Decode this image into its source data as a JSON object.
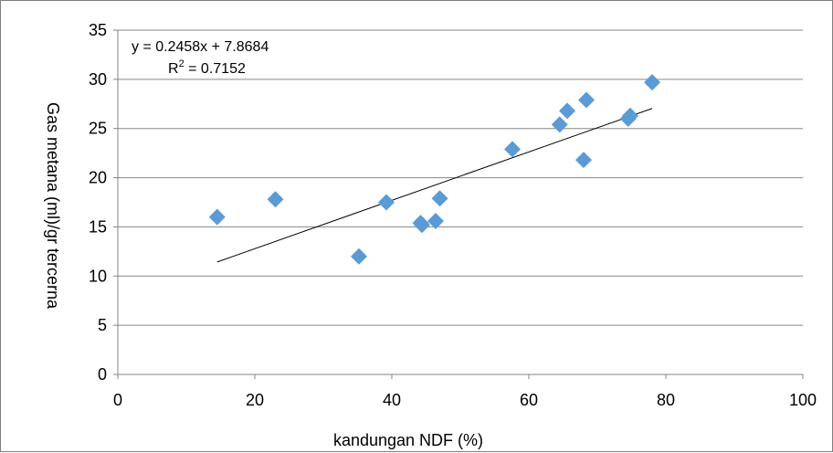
{
  "chart_data": {
    "type": "scatter",
    "xlabel": "kandungan NDF (%)",
    "ylabel": "Gas metana (ml)/gr tercerna",
    "xlim": [
      0,
      100
    ],
    "ylim": [
      0,
      35
    ],
    "x_ticks": [
      0,
      20,
      40,
      60,
      80,
      100
    ],
    "y_ticks": [
      0,
      5,
      10,
      15,
      20,
      25,
      30,
      35
    ],
    "grid": "horizontal",
    "marker_color": "#5b9bd5",
    "trendline_color": "#000000",
    "points": [
      {
        "x": 14.5,
        "y": 16.0
      },
      {
        "x": 23.0,
        "y": 17.8
      },
      {
        "x": 35.2,
        "y": 12.0
      },
      {
        "x": 39.2,
        "y": 17.5
      },
      {
        "x": 44.2,
        "y": 15.4
      },
      {
        "x": 44.4,
        "y": 15.2
      },
      {
        "x": 46.4,
        "y": 15.6
      },
      {
        "x": 47.0,
        "y": 17.9
      },
      {
        "x": 57.6,
        "y": 22.9
      },
      {
        "x": 64.5,
        "y": 25.4
      },
      {
        "x": 65.6,
        "y": 26.8
      },
      {
        "x": 68.0,
        "y": 21.8
      },
      {
        "x": 68.4,
        "y": 27.9
      },
      {
        "x": 74.5,
        "y": 26.0
      },
      {
        "x": 74.8,
        "y": 26.3
      },
      {
        "x": 78.0,
        "y": 29.7
      }
    ],
    "trendline": {
      "slope": 0.2458,
      "intercept": 7.8684,
      "x_range": [
        14.5,
        78.0
      ],
      "equation_label": "y = 0.2458x + 7.8684",
      "r2_prefix": "R",
      "r2_sup": "2",
      "r2_value": " = 0.7152"
    }
  }
}
